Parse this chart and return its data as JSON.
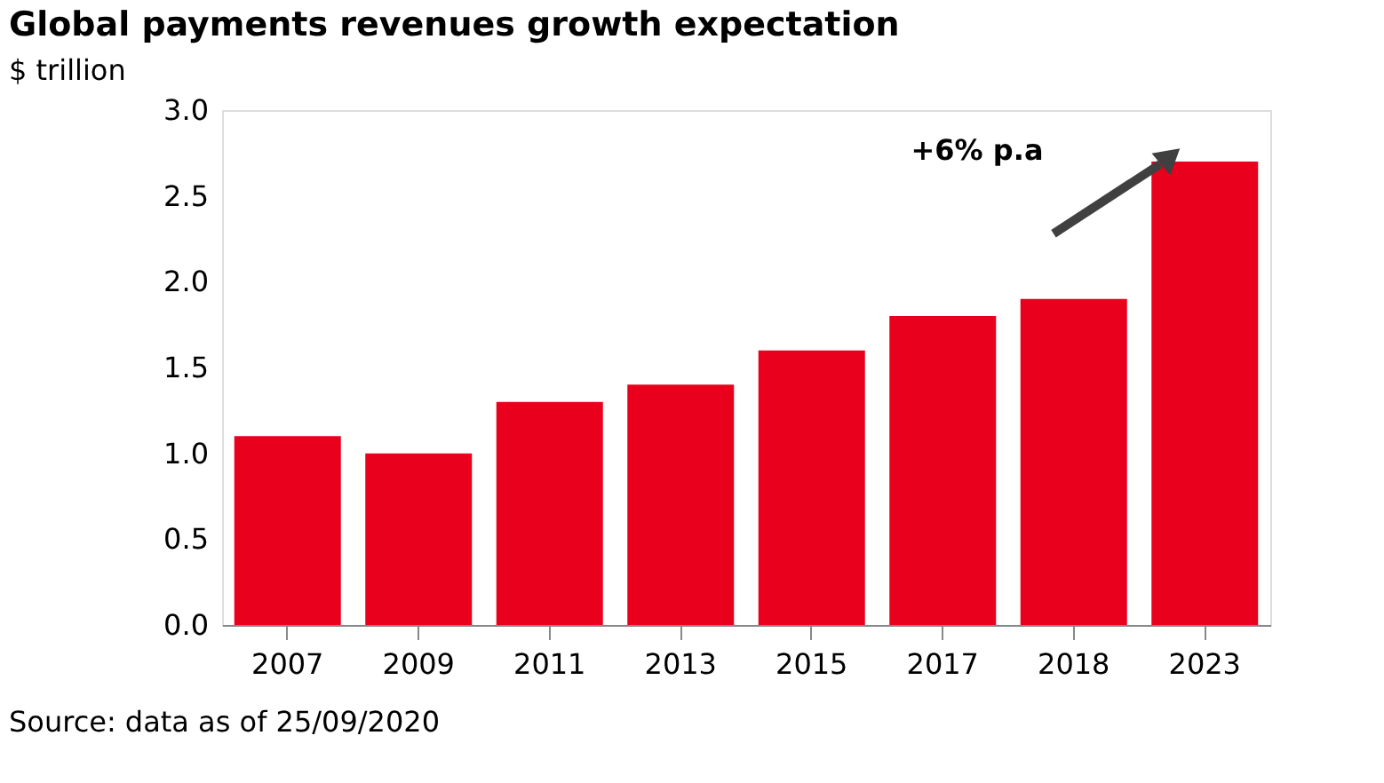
{
  "chart_data": {
    "type": "bar",
    "title": "Global payments revenues growth expectation",
    "ylabel": "$ trillion",
    "categories": [
      "2007",
      "2009",
      "2011",
      "2013",
      "2015",
      "2017",
      "2018",
      "2023"
    ],
    "values": [
      1.1,
      1.0,
      1.3,
      1.4,
      1.6,
      1.8,
      1.9,
      2.7
    ],
    "color": "#e8001c",
    "ylim": [
      0,
      3
    ],
    "yticks": [
      {
        "value": 0,
        "label": "0.0"
      },
      {
        "value": 0.5,
        "label": "0.5"
      },
      {
        "value": 1,
        "label": "1.0"
      },
      {
        "value": 1.5,
        "label": "1.5"
      },
      {
        "value": 2,
        "label": "2.0"
      },
      {
        "value": 2.5,
        "label": "2.5"
      },
      {
        "value": 3,
        "label": "3.0"
      }
    ],
    "grid": false,
    "annotations": [
      "+6% p.a",
      "Source: data as of 25/09/2020"
    ]
  }
}
